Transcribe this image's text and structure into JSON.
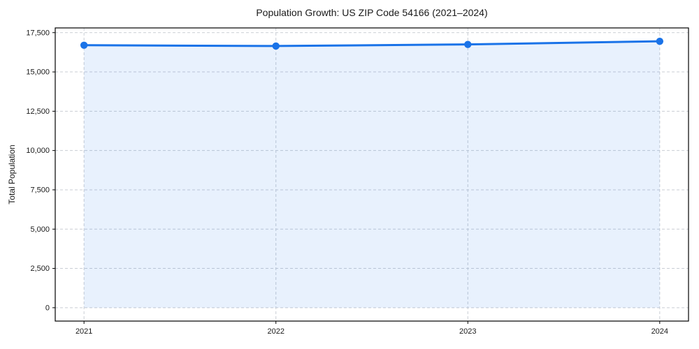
{
  "chart_data": {
    "type": "area",
    "title": "Population Growth: US ZIP Code 54166 (2021–2024)",
    "xlabel": "",
    "ylabel": "Total Population",
    "x": [
      2021,
      2022,
      2023,
      2024
    ],
    "x_tick_labels": [
      "2021",
      "2022",
      "2023",
      "2024"
    ],
    "series": [
      {
        "name": "Total Population",
        "values": [
          16700,
          16650,
          16750,
          16950
        ]
      }
    ],
    "y_ticks": [
      0,
      2500,
      5000,
      7500,
      10000,
      12500,
      15000,
      17500
    ],
    "y_tick_labels": [
      "0",
      "2,500",
      "5,000",
      "7,500",
      "10,000",
      "12,500",
      "15,000",
      "17,500"
    ],
    "xlim": [
      2020.85,
      2024.15
    ],
    "ylim": [
      -850,
      17800
    ],
    "baseline": 0,
    "grid": true,
    "grid_style": "dashed",
    "legend": false,
    "colors": {
      "line": "#1a73e8",
      "marker": "#1a73e8",
      "fill": "rgba(26,115,232,0.10)",
      "grid": "#c9cdd4",
      "spine": "#000000",
      "text": "#1a1a1a",
      "background": "#ffffff"
    }
  }
}
